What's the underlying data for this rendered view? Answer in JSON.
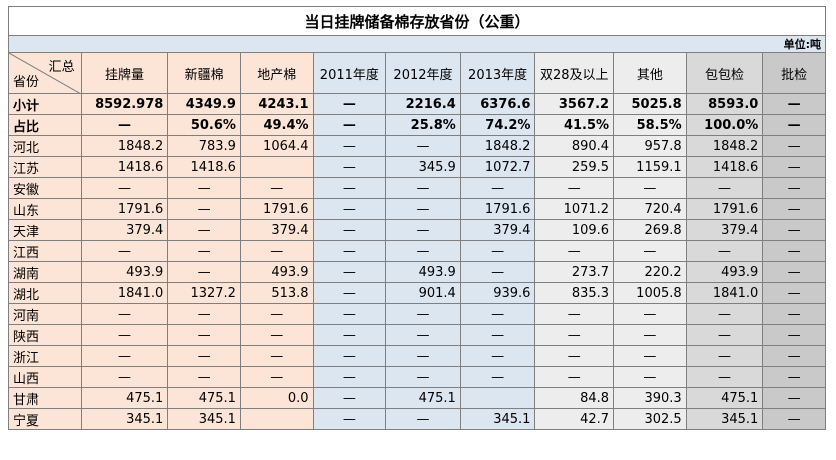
{
  "header": {
    "title": "当日挂牌储备棉存放省份（公重）",
    "unit": "单位:吨"
  },
  "table": {
    "corner_top": "汇总",
    "corner_bottom": "省份",
    "columns": [
      "挂牌量",
      "新疆棉",
      "地产棉",
      "2011年度",
      "2012年度",
      "2013年度",
      "双28及以上",
      "其他",
      "包包检",
      "批检"
    ],
    "rows": [
      [
        "小计",
        "8592.978",
        "4349.9",
        "4243.1",
        "—",
        "2216.4",
        "6376.6",
        "3567.2",
        "5025.8",
        "8593.0",
        "—"
      ],
      [
        "占比",
        "—",
        "50.6%",
        "49.4%",
        "—",
        "25.8%",
        "74.2%",
        "41.5%",
        "58.5%",
        "100.0%",
        "—"
      ],
      [
        "河北",
        "1848.2",
        "783.9",
        "1064.4",
        "—",
        "—",
        "1848.2",
        "890.4",
        "957.8",
        "1848.2",
        "—"
      ],
      [
        "江苏",
        "1418.6",
        "1418.6",
        null,
        "—",
        "345.9",
        "1072.7",
        "259.5",
        "1159.1",
        "1418.6",
        "—"
      ],
      [
        "安徽",
        "—",
        "—",
        "—",
        "—",
        "—",
        "—",
        "—",
        "—",
        "—",
        "—"
      ],
      [
        "山东",
        "1791.6",
        "—",
        "1791.6",
        "—",
        "—",
        "1791.6",
        "1071.2",
        "720.4",
        "1791.6",
        "—"
      ],
      [
        "天津",
        "379.4",
        "—",
        "379.4",
        "—",
        "—",
        "379.4",
        "109.6",
        "269.8",
        "379.4",
        "—"
      ],
      [
        "江西",
        "—",
        "—",
        "—",
        "—",
        "—",
        "—",
        "—",
        "—",
        "—",
        "—"
      ],
      [
        "湖南",
        "493.9",
        "—",
        "493.9",
        "—",
        "493.9",
        "—",
        "273.7",
        "220.2",
        "493.9",
        "—"
      ],
      [
        "湖北",
        "1841.0",
        "1327.2",
        "513.8",
        "—",
        "901.4",
        "939.6",
        "835.3",
        "1005.8",
        "1841.0",
        "—"
      ],
      [
        "河南",
        "—",
        "—",
        "—",
        "—",
        "—",
        "—",
        "—",
        "—",
        "—",
        "—"
      ],
      [
        "陕西",
        "—",
        "—",
        "—",
        "—",
        "—",
        "—",
        "—",
        "—",
        "—",
        "—"
      ],
      [
        "浙江",
        "—",
        "—",
        "—",
        "—",
        "—",
        "—",
        "—",
        "—",
        "—",
        "—"
      ],
      [
        "山西",
        "—",
        "—",
        "—",
        "—",
        "—",
        "—",
        "—",
        "—",
        "—",
        "—"
      ],
      [
        "甘肃",
        "475.1",
        "475.1",
        "0.0",
        "—",
        "475.1",
        null,
        "84.8",
        "390.3",
        "475.1",
        "—"
      ],
      [
        "宁夏",
        "345.1",
        "345.1",
        null,
        "—",
        "—",
        "345.1",
        "42.7",
        "302.5",
        "345.1",
        "—"
      ]
    ]
  }
}
